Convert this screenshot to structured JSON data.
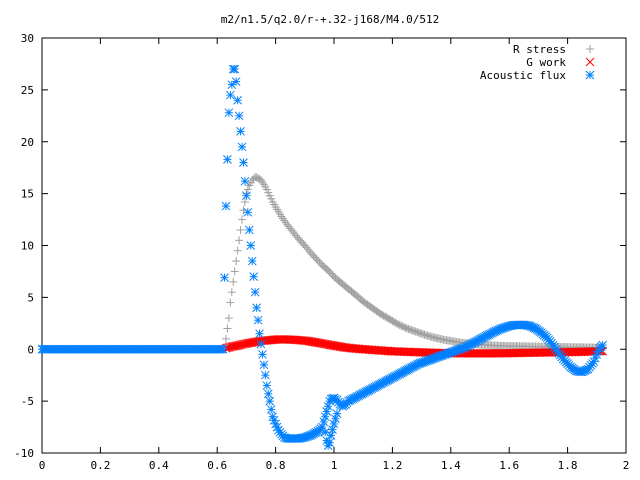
{
  "chart_data": {
    "type": "scatter",
    "title": "m2/n1.5/q2.0/r-+.32-j168/M4.0/512",
    "xlabel": "",
    "ylabel": "",
    "xlim": [
      0,
      2
    ],
    "ylim": [
      -10,
      30
    ],
    "x_ticks": [
      0,
      0.2,
      0.4,
      0.6,
      0.8,
      1,
      1.2,
      1.4,
      1.6,
      1.8,
      2
    ],
    "x_tick_labels": [
      "0",
      "0.2",
      "0.4",
      "0.6",
      "0.8",
      "1",
      "1.2",
      "1.4",
      "1.6",
      "1.8",
      "2"
    ],
    "y_ticks": [
      -10,
      -5,
      0,
      5,
      10,
      15,
      20,
      25,
      30
    ],
    "y_tick_labels": [
      "-10",
      "-5",
      "0",
      "5",
      "10",
      "15",
      "20",
      "25",
      "30"
    ],
    "grid": false,
    "legend_position": "top-right",
    "series": [
      {
        "name": "R stress",
        "marker": "plus",
        "color": "#a0a0a0",
        "points": [
          [
            0.63,
            1.0
          ],
          [
            0.635,
            2.0
          ],
          [
            0.64,
            3.0
          ],
          [
            0.645,
            4.5
          ],
          [
            0.65,
            5.5
          ],
          [
            0.655,
            6.5
          ],
          [
            0.66,
            7.5
          ],
          [
            0.665,
            8.5
          ],
          [
            0.67,
            9.5
          ],
          [
            0.675,
            10.5
          ],
          [
            0.68,
            11.5
          ],
          [
            0.685,
            12.5
          ],
          [
            0.69,
            13.4
          ],
          [
            0.695,
            14.2
          ],
          [
            0.7,
            15.0
          ],
          [
            0.71,
            15.8
          ],
          [
            0.72,
            16.3
          ],
          [
            0.73,
            16.6
          ],
          [
            0.74,
            16.5
          ],
          [
            0.75,
            16.3
          ],
          [
            0.76,
            15.9
          ],
          [
            0.77,
            15.4
          ],
          [
            0.78,
            14.8
          ],
          [
            0.79,
            14.2
          ],
          [
            0.8,
            13.7
          ],
          [
            0.82,
            12.8
          ],
          [
            0.84,
            12.0
          ],
          [
            0.86,
            11.3
          ],
          [
            0.88,
            10.6
          ],
          [
            0.9,
            10.0
          ],
          [
            0.92,
            9.3
          ],
          [
            0.94,
            8.7
          ],
          [
            0.96,
            8.1
          ],
          [
            0.98,
            7.6
          ],
          [
            1.0,
            7.0
          ],
          [
            1.02,
            6.5
          ],
          [
            1.05,
            5.8
          ],
          [
            1.08,
            5.1
          ],
          [
            1.1,
            4.6
          ],
          [
            1.13,
            4.0
          ],
          [
            1.16,
            3.4
          ],
          [
            1.19,
            2.9
          ],
          [
            1.22,
            2.4
          ],
          [
            1.25,
            2.0
          ],
          [
            1.28,
            1.7
          ],
          [
            1.31,
            1.4
          ],
          [
            1.34,
            1.15
          ],
          [
            1.37,
            0.95
          ],
          [
            1.4,
            0.8
          ],
          [
            1.43,
            0.65
          ],
          [
            1.46,
            0.55
          ],
          [
            1.5,
            0.45
          ],
          [
            1.55,
            0.35
          ],
          [
            1.6,
            0.3
          ],
          [
            1.65,
            0.28
          ],
          [
            1.7,
            0.25
          ],
          [
            1.75,
            0.22
          ],
          [
            1.8,
            0.2
          ],
          [
            1.85,
            0.18
          ],
          [
            1.9,
            0.15
          ],
          [
            1.92,
            0.12
          ]
        ]
      },
      {
        "name": "G work",
        "marker": "cross",
        "color": "#ff0000",
        "points": [
          [
            0.63,
            0.1
          ],
          [
            0.65,
            0.25
          ],
          [
            0.67,
            0.35
          ],
          [
            0.69,
            0.5
          ],
          [
            0.71,
            0.6
          ],
          [
            0.73,
            0.7
          ],
          [
            0.75,
            0.8
          ],
          [
            0.77,
            0.85
          ],
          [
            0.79,
            0.9
          ],
          [
            0.81,
            0.95
          ],
          [
            0.83,
            0.95
          ],
          [
            0.85,
            0.93
          ],
          [
            0.87,
            0.9
          ],
          [
            0.89,
            0.85
          ],
          [
            0.91,
            0.8
          ],
          [
            0.93,
            0.7
          ],
          [
            0.95,
            0.6
          ],
          [
            0.97,
            0.5
          ],
          [
            1.0,
            0.35
          ],
          [
            1.03,
            0.2
          ],
          [
            1.06,
            0.1
          ],
          [
            1.1,
            0.0
          ],
          [
            1.15,
            -0.1
          ],
          [
            1.2,
            -0.2
          ],
          [
            1.25,
            -0.25
          ],
          [
            1.3,
            -0.3
          ],
          [
            1.35,
            -0.35
          ],
          [
            1.4,
            -0.38
          ],
          [
            1.45,
            -0.4
          ],
          [
            1.5,
            -0.4
          ],
          [
            1.55,
            -0.4
          ],
          [
            1.6,
            -0.38
          ],
          [
            1.65,
            -0.35
          ],
          [
            1.7,
            -0.33
          ],
          [
            1.75,
            -0.3
          ],
          [
            1.8,
            -0.28
          ],
          [
            1.85,
            -0.25
          ],
          [
            1.9,
            -0.2
          ],
          [
            1.92,
            -0.18
          ]
        ]
      },
      {
        "name": "Acoustic flux",
        "marker": "star",
        "color": "#0080ff",
        "points": [
          [
            0.0,
            0.0
          ],
          [
            0.02,
            0.0
          ],
          [
            0.04,
            0.0
          ],
          [
            0.06,
            0.0
          ],
          [
            0.08,
            0.0
          ],
          [
            0.1,
            0.0
          ],
          [
            0.12,
            0.0
          ],
          [
            0.14,
            0.0
          ],
          [
            0.16,
            0.0
          ],
          [
            0.18,
            0.0
          ],
          [
            0.2,
            0.0
          ],
          [
            0.22,
            0.0
          ],
          [
            0.24,
            0.0
          ],
          [
            0.26,
            0.0
          ],
          [
            0.28,
            0.0
          ],
          [
            0.3,
            0.0
          ],
          [
            0.32,
            0.0
          ],
          [
            0.34,
            0.0
          ],
          [
            0.36,
            0.0
          ],
          [
            0.38,
            0.0
          ],
          [
            0.4,
            0.0
          ],
          [
            0.42,
            0.0
          ],
          [
            0.44,
            0.0
          ],
          [
            0.46,
            0.0
          ],
          [
            0.48,
            0.0
          ],
          [
            0.5,
            0.0
          ],
          [
            0.52,
            0.0
          ],
          [
            0.54,
            0.0
          ],
          [
            0.56,
            0.0
          ],
          [
            0.58,
            0.0
          ],
          [
            0.6,
            0.0
          ],
          [
            0.62,
            0.0
          ],
          [
            0.63,
            13.8
          ],
          [
            0.64,
            22.8
          ],
          [
            0.645,
            24.5
          ],
          [
            0.65,
            25.5
          ],
          [
            0.655,
            27.0
          ],
          [
            0.66,
            27.0
          ],
          [
            0.665,
            25.8
          ],
          [
            0.67,
            24.0
          ],
          [
            0.675,
            22.5
          ],
          [
            0.68,
            21.0
          ],
          [
            0.685,
            19.5
          ],
          [
            0.69,
            18.0
          ],
          [
            0.695,
            16.2
          ],
          [
            0.7,
            14.8
          ],
          [
            0.705,
            13.2
          ],
          [
            0.71,
            11.5
          ],
          [
            0.715,
            10.0
          ],
          [
            0.72,
            8.5
          ],
          [
            0.725,
            7.0
          ],
          [
            0.73,
            5.5
          ],
          [
            0.735,
            4.0
          ],
          [
            0.74,
            2.8
          ],
          [
            0.745,
            1.5
          ],
          [
            0.75,
            0.5
          ],
          [
            0.755,
            -0.5
          ],
          [
            0.76,
            -1.5
          ],
          [
            0.765,
            -2.5
          ],
          [
            0.77,
            -3.5
          ],
          [
            0.775,
            -4.3
          ],
          [
            0.78,
            -5.0
          ],
          [
            0.785,
            -5.8
          ],
          [
            0.79,
            -6.5
          ],
          [
            0.8,
            -7.2
          ],
          [
            0.81,
            -7.8
          ],
          [
            0.82,
            -8.2
          ],
          [
            0.83,
            -8.5
          ],
          [
            0.84,
            -8.6
          ],
          [
            0.86,
            -8.6
          ],
          [
            0.88,
            -8.6
          ],
          [
            0.9,
            -8.5
          ],
          [
            0.92,
            -8.3
          ],
          [
            0.94,
            -8.0
          ],
          [
            0.95,
            -7.8
          ],
          [
            0.96,
            -7.5
          ],
          [
            0.97,
            -6.5
          ],
          [
            0.98,
            -5.5
          ],
          [
            0.985,
            -5.0
          ],
          [
            0.99,
            -4.8
          ],
          [
            1.0,
            -4.7
          ],
          [
            1.01,
            -4.9
          ],
          [
            1.02,
            -5.3
          ],
          [
            1.03,
            -5.5
          ],
          [
            1.04,
            -5.3
          ],
          [
            1.05,
            -5.0
          ],
          [
            1.07,
            -4.7
          ],
          [
            1.09,
            -4.4
          ],
          [
            1.11,
            -4.1
          ],
          [
            1.13,
            -3.8
          ],
          [
            1.15,
            -3.5
          ],
          [
            1.17,
            -3.2
          ],
          [
            1.19,
            -2.9
          ],
          [
            1.21,
            -2.6
          ],
          [
            1.23,
            -2.3
          ],
          [
            1.25,
            -2.0
          ],
          [
            1.27,
            -1.7
          ],
          [
            1.29,
            -1.4
          ],
          [
            1.31,
            -1.2
          ],
          [
            1.33,
            -1.0
          ],
          [
            1.35,
            -0.8
          ],
          [
            1.37,
            -0.6
          ],
          [
            1.39,
            -0.4
          ],
          [
            1.41,
            -0.2
          ],
          [
            1.43,
            0.0
          ],
          [
            1.45,
            0.2
          ],
          [
            1.47,
            0.5
          ],
          [
            1.49,
            0.8
          ],
          [
            1.51,
            1.1
          ],
          [
            1.53,
            1.4
          ],
          [
            1.55,
            1.7
          ],
          [
            1.57,
            1.95
          ],
          [
            1.59,
            2.15
          ],
          [
            1.61,
            2.3
          ],
          [
            1.63,
            2.35
          ],
          [
            1.65,
            2.35
          ],
          [
            1.67,
            2.25
          ],
          [
            1.69,
            2.0
          ],
          [
            1.71,
            1.6
          ],
          [
            1.73,
            1.1
          ],
          [
            1.75,
            0.4
          ],
          [
            1.77,
            -0.4
          ],
          [
            1.79,
            -1.1
          ],
          [
            1.81,
            -1.7
          ],
          [
            1.83,
            -2.1
          ],
          [
            1.85,
            -2.2
          ],
          [
            1.87,
            -1.9
          ],
          [
            1.89,
            -1.2
          ],
          [
            1.9,
            -0.5
          ],
          [
            1.91,
            0.1
          ],
          [
            1.92,
            0.4
          ]
        ]
      }
    ]
  },
  "extra_acoustic_points": [
    [
      0.97,
      -8.0
    ],
    [
      0.975,
      -8.8
    ],
    [
      0.98,
      -9.3
    ],
    [
      0.985,
      -9.0
    ],
    [
      0.99,
      -8.3
    ],
    [
      1.0,
      -7.2
    ],
    [
      1.01,
      -6.2
    ]
  ]
}
